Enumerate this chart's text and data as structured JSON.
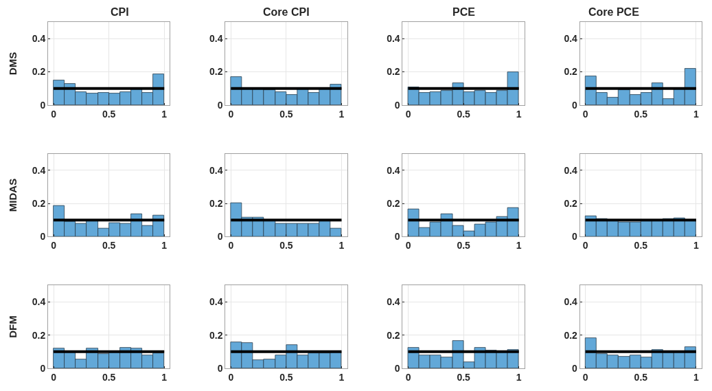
{
  "chart_data": [
    {
      "type": "histogram",
      "title": "CPI",
      "ylabel": "DMS",
      "bins": [
        0,
        0.1,
        0.2,
        0.3,
        0.4,
        0.5,
        0.6,
        0.7,
        0.8,
        0.9,
        1
      ],
      "values": [
        0.15,
        0.13,
        0.08,
        0.07,
        0.073,
        0.07,
        0.08,
        0.1,
        0.073,
        0.185
      ],
      "color": "#62a8d8",
      "xlim": [
        -0.05,
        1.05
      ],
      "xticks": [
        0,
        0.5,
        1
      ],
      "ylim": [
        0,
        0.5
      ],
      "yticks": [
        0,
        0.2,
        0.4
      ],
      "grid": true,
      "ref_lines": [
        {
          "axis": "y",
          "value": 0.1,
          "color": "#000000"
        }
      ]
    },
    {
      "type": "histogram",
      "title": "Core CPI",
      "bins": [
        0,
        0.1,
        0.2,
        0.3,
        0.4,
        0.5,
        0.6,
        0.7,
        0.8,
        0.9,
        1
      ],
      "values": [
        0.17,
        0.105,
        0.1,
        0.09,
        0.08,
        0.063,
        0.1,
        0.073,
        0.105,
        0.123
      ],
      "color": "#62a8d8",
      "xlim": [
        -0.05,
        1.05
      ],
      "xticks": [
        0,
        0.5,
        1
      ],
      "ylim": [
        0,
        0.5
      ],
      "yticks": [
        0,
        0.2,
        0.4
      ],
      "grid": true,
      "ref_lines": [
        {
          "axis": "y",
          "value": 0.1,
          "color": "#000000"
        }
      ]
    },
    {
      "type": "histogram",
      "title": "PCE",
      "bins": [
        0,
        0.1,
        0.2,
        0.3,
        0.4,
        0.5,
        0.6,
        0.7,
        0.8,
        0.9,
        1
      ],
      "values": [
        0.107,
        0.073,
        0.08,
        0.085,
        0.133,
        0.08,
        0.085,
        0.073,
        0.085,
        0.2
      ],
      "color": "#62a8d8",
      "xlim": [
        -0.05,
        1.05
      ],
      "xticks": [
        0,
        0.5,
        1
      ],
      "ylim": [
        0,
        0.5
      ],
      "yticks": [
        0,
        0.2,
        0.4
      ],
      "grid": true,
      "ref_lines": [
        {
          "axis": "y",
          "value": 0.1,
          "color": "#000000"
        }
      ]
    },
    {
      "type": "histogram",
      "title": "Core PCE",
      "bins": [
        0,
        0.1,
        0.2,
        0.3,
        0.4,
        0.5,
        0.6,
        0.7,
        0.8,
        0.9,
        1
      ],
      "values": [
        0.175,
        0.073,
        0.047,
        0.092,
        0.063,
        0.073,
        0.133,
        0.035,
        0.1,
        0.218
      ],
      "color": "#62a8d8",
      "xlim": [
        -0.05,
        1.05
      ],
      "xticks": [
        0,
        0.5,
        1
      ],
      "ylim": [
        0,
        0.5
      ],
      "yticks": [
        0,
        0.2,
        0.4
      ],
      "grid": true,
      "ref_lines": [
        {
          "axis": "y",
          "value": 0.1,
          "color": "#000000"
        }
      ]
    },
    {
      "type": "histogram",
      "ylabel": "MIDAS",
      "bins": [
        0,
        0.1,
        0.2,
        0.3,
        0.4,
        0.5,
        0.6,
        0.7,
        0.8,
        0.9,
        1
      ],
      "values": [
        0.185,
        0.09,
        0.08,
        0.1,
        0.048,
        0.083,
        0.08,
        0.135,
        0.068,
        0.128
      ],
      "color": "#62a8d8",
      "xlim": [
        -0.05,
        1.05
      ],
      "xticks": [
        0,
        0.5,
        1
      ],
      "ylim": [
        0,
        0.5
      ],
      "yticks": [
        0,
        0.2,
        0.4
      ],
      "grid": true,
      "ref_lines": [
        {
          "axis": "y",
          "value": 0.1,
          "color": "#000000"
        }
      ]
    },
    {
      "type": "histogram",
      "bins": [
        0,
        0.1,
        0.2,
        0.3,
        0.4,
        0.5,
        0.6,
        0.7,
        0.8,
        0.9,
        1
      ],
      "values": [
        0.203,
        0.117,
        0.117,
        0.1,
        0.078,
        0.078,
        0.078,
        0.078,
        0.1,
        0.048
      ],
      "color": "#62a8d8",
      "xlim": [
        -0.05,
        1.05
      ],
      "xticks": [
        0,
        0.5,
        1
      ],
      "ylim": [
        0,
        0.5
      ],
      "yticks": [
        0,
        0.2,
        0.4
      ],
      "grid": true,
      "ref_lines": [
        {
          "axis": "y",
          "value": 0.1,
          "color": "#000000"
        }
      ]
    },
    {
      "type": "histogram",
      "bins": [
        0,
        0.1,
        0.2,
        0.3,
        0.4,
        0.5,
        0.6,
        0.7,
        0.8,
        0.9,
        1
      ],
      "values": [
        0.165,
        0.055,
        0.085,
        0.135,
        0.067,
        0.032,
        0.073,
        0.085,
        0.12,
        0.175
      ],
      "color": "#62a8d8",
      "xlim": [
        -0.05,
        1.05
      ],
      "xticks": [
        0,
        0.5,
        1
      ],
      "ylim": [
        0,
        0.5
      ],
      "yticks": [
        0,
        0.2,
        0.4
      ],
      "grid": true,
      "ref_lines": [
        {
          "axis": "y",
          "value": 0.1,
          "color": "#000000"
        }
      ]
    },
    {
      "type": "histogram",
      "bins": [
        0,
        0.1,
        0.2,
        0.3,
        0.4,
        0.5,
        0.6,
        0.7,
        0.8,
        0.9,
        1
      ],
      "values": [
        0.125,
        0.107,
        0.1,
        0.087,
        0.087,
        0.093,
        0.093,
        0.107,
        0.113,
        0.095
      ],
      "color": "#62a8d8",
      "xlim": [
        -0.05,
        1.05
      ],
      "xticks": [
        0,
        0.5,
        1
      ],
      "ylim": [
        0,
        0.5
      ],
      "yticks": [
        0,
        0.2,
        0.4
      ],
      "grid": true,
      "ref_lines": [
        {
          "axis": "y",
          "value": 0.1,
          "color": "#000000"
        }
      ]
    },
    {
      "type": "histogram",
      "ylabel": "DFM",
      "bins": [
        0,
        0.1,
        0.2,
        0.3,
        0.4,
        0.5,
        0.6,
        0.7,
        0.8,
        0.9,
        1
      ],
      "values": [
        0.118,
        0.105,
        0.055,
        0.118,
        0.085,
        0.105,
        0.123,
        0.118,
        0.08,
        0.09
      ],
      "color": "#62a8d8",
      "xlim": [
        -0.05,
        1.05
      ],
      "xticks": [
        0,
        0.5,
        1
      ],
      "ylim": [
        0,
        0.5
      ],
      "yticks": [
        0,
        0.2,
        0.4
      ],
      "grid": true,
      "ref_lines": [
        {
          "axis": "y",
          "value": 0.1,
          "color": "#000000"
        }
      ]
    },
    {
      "type": "histogram",
      "bins": [
        0,
        0.1,
        0.2,
        0.3,
        0.4,
        0.5,
        0.6,
        0.7,
        0.8,
        0.9,
        1
      ],
      "values": [
        0.158,
        0.153,
        0.05,
        0.055,
        0.08,
        0.14,
        0.08,
        0.09,
        0.09,
        0.1
      ],
      "color": "#62a8d8",
      "xlim": [
        -0.05,
        1.05
      ],
      "xticks": [
        0,
        0.5,
        1
      ],
      "ylim": [
        0,
        0.5
      ],
      "yticks": [
        0,
        0.2,
        0.4
      ],
      "grid": true,
      "ref_lines": [
        {
          "axis": "y",
          "value": 0.1,
          "color": "#000000"
        }
      ]
    },
    {
      "type": "histogram",
      "bins": [
        0,
        0.1,
        0.2,
        0.3,
        0.4,
        0.5,
        0.6,
        0.7,
        0.8,
        0.9,
        1
      ],
      "values": [
        0.125,
        0.08,
        0.08,
        0.067,
        0.165,
        0.038,
        0.125,
        0.107,
        0.1,
        0.113
      ],
      "color": "#62a8d8",
      "xlim": [
        -0.05,
        1.05
      ],
      "xticks": [
        0,
        0.5,
        1
      ],
      "ylim": [
        0,
        0.5
      ],
      "yticks": [
        0,
        0.2,
        0.4
      ],
      "grid": true,
      "ref_lines": [
        {
          "axis": "y",
          "value": 0.1,
          "color": "#000000"
        }
      ]
    },
    {
      "type": "histogram",
      "bins": [
        0,
        0.1,
        0.2,
        0.3,
        0.4,
        0.5,
        0.6,
        0.7,
        0.8,
        0.9,
        1
      ],
      "values": [
        0.18,
        0.085,
        0.08,
        0.07,
        0.08,
        0.067,
        0.113,
        0.093,
        0.1,
        0.13
      ],
      "color": "#62a8d8",
      "xlim": [
        -0.05,
        1.05
      ],
      "xticks": [
        0,
        0.5,
        1
      ],
      "ylim": [
        0,
        0.5
      ],
      "yticks": [
        0,
        0.2,
        0.4
      ],
      "grid": true,
      "ref_lines": [
        {
          "axis": "y",
          "value": 0.1,
          "color": "#000000"
        }
      ]
    }
  ]
}
